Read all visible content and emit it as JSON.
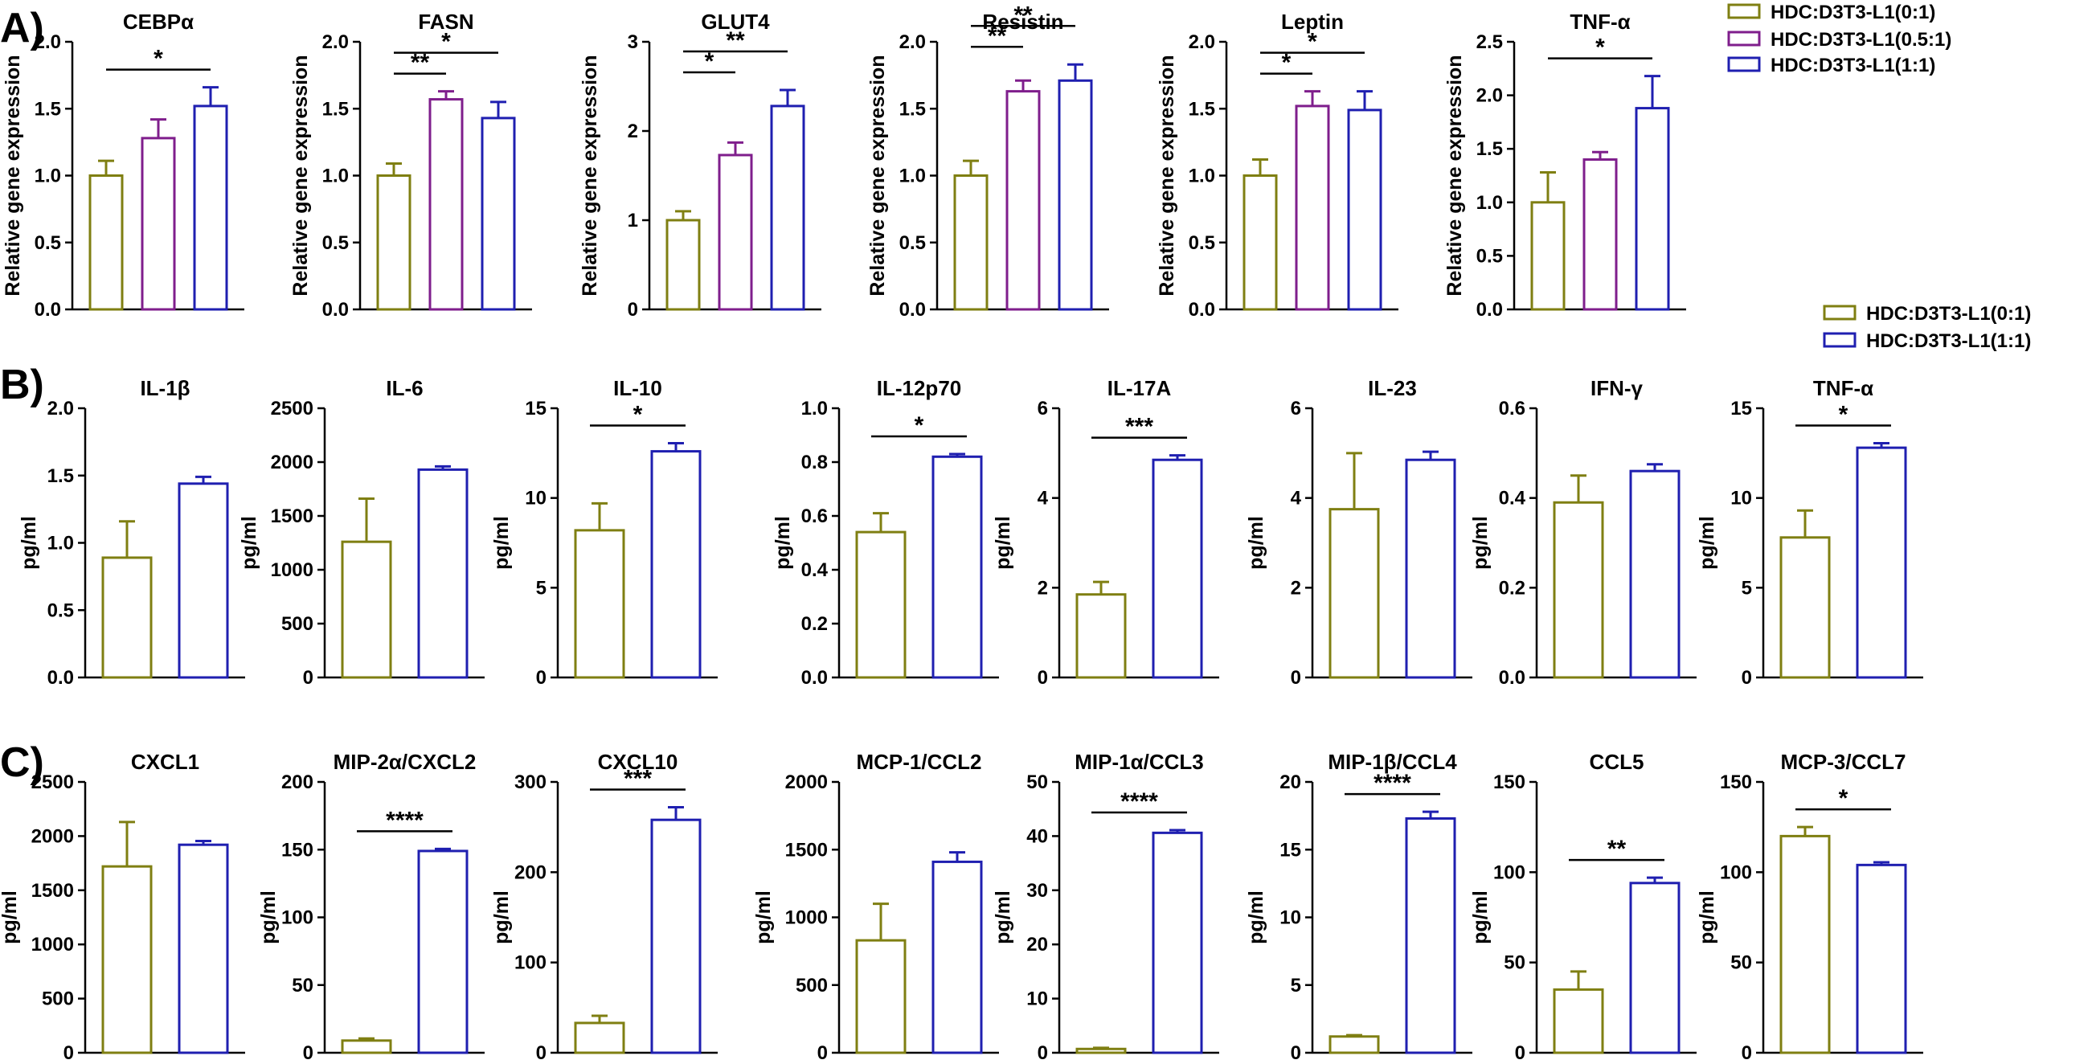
{
  "panels": [
    {
      "label": "A)",
      "ylabel": "Relative gene expression"
    },
    {
      "label": "B)",
      "ylabel": "pg/ml"
    },
    {
      "label": "C)",
      "ylabel": "pg/ml"
    }
  ],
  "groups": [
    {
      "name": "HDC:D3T3-L1(0:1)",
      "color": "#7f7f12"
    },
    {
      "name": "HDC:D3T3-L1(0.5:1)",
      "color": "#7f1e8c"
    },
    {
      "name": "HDC:D3T3-L1(1:1)",
      "color": "#1f1fb0"
    }
  ],
  "legends": [
    {
      "items": [
        "HDC:D3T3-L1(0:1)",
        "HDC:D3T3-L1(0.5:1)",
        "HDC:D3T3-L1(1:1)"
      ],
      "colors": [
        "#7f7f12",
        "#7f1e8c",
        "#1f1fb0"
      ]
    },
    {
      "items": [
        "HDC:D3T3-L1(0:1)",
        "HDC:D3T3-L1(1:1)"
      ],
      "colors": [
        "#7f7f12",
        "#1f1fb0"
      ]
    }
  ],
  "chart_data": [
    {
      "panel": "A",
      "type": "bar",
      "title": "CEBPα",
      "ylabel": "Relative gene expression",
      "ylim": [
        0,
        2.0
      ],
      "yticks": [
        "0.0",
        "0.5",
        "1.0",
        "1.5",
        "2.0"
      ],
      "groups": [
        "HDC:D3T3-L1(0:1)",
        "HDC:D3T3-L1(0.5:1)",
        "HDC:D3T3-L1(1:1)"
      ],
      "values": [
        1.0,
        1.28,
        1.52
      ],
      "errors": [
        0.11,
        0.14,
        0.14
      ],
      "significance": [
        {
          "from": 0,
          "to": 2,
          "label": "*"
        }
      ]
    },
    {
      "panel": "A",
      "type": "bar",
      "title": "FASN",
      "ylabel": "Relative gene expression",
      "ylim": [
        0,
        2.0
      ],
      "yticks": [
        "0.0",
        "0.5",
        "1.0",
        "1.5",
        "2.0"
      ],
      "groups": [
        "HDC:D3T3-L1(0:1)",
        "HDC:D3T3-L1(0.5:1)",
        "HDC:D3T3-L1(1:1)"
      ],
      "values": [
        1.0,
        1.57,
        1.43
      ],
      "errors": [
        0.09,
        0.06,
        0.12
      ],
      "significance": [
        {
          "from": 0,
          "to": 1,
          "label": "**"
        },
        {
          "from": 0,
          "to": 2,
          "label": "*"
        }
      ]
    },
    {
      "panel": "A",
      "type": "bar",
      "title": "GLUT4",
      "ylabel": "Relative gene expression",
      "ylim": [
        0,
        3
      ],
      "yticks": [
        "0",
        "1",
        "2",
        "3"
      ],
      "groups": [
        "HDC:D3T3-L1(0:1)",
        "HDC:D3T3-L1(0.5:1)",
        "HDC:D3T3-L1(1:1)"
      ],
      "values": [
        1.0,
        1.73,
        2.28
      ],
      "errors": [
        0.1,
        0.14,
        0.18
      ],
      "significance": [
        {
          "from": 0,
          "to": 1,
          "label": "*"
        },
        {
          "from": 0,
          "to": 2,
          "label": "**"
        }
      ]
    },
    {
      "panel": "A",
      "type": "bar",
      "title": "Resistin",
      "ylabel": "Relative gene expression",
      "ylim": [
        0,
        2.0
      ],
      "yticks": [
        "0.0",
        "0.5",
        "1.0",
        "1.5",
        "2.0"
      ],
      "groups": [
        "HDC:D3T3-L1(0:1)",
        "HDC:D3T3-L1(0.5:1)",
        "HDC:D3T3-L1(1:1)"
      ],
      "values": [
        1.0,
        1.63,
        1.71
      ],
      "errors": [
        0.11,
        0.08,
        0.12
      ],
      "significance": [
        {
          "from": 0,
          "to": 1,
          "label": "**"
        },
        {
          "from": 0,
          "to": 2,
          "label": "**"
        }
      ]
    },
    {
      "panel": "A",
      "type": "bar",
      "title": "Leptin",
      "ylabel": "Relative gene expression",
      "ylim": [
        0,
        2.0
      ],
      "yticks": [
        "0.0",
        "0.5",
        "1.0",
        "1.5",
        "2.0"
      ],
      "groups": [
        "HDC:D3T3-L1(0:1)",
        "HDC:D3T3-L1(0.5:1)",
        "HDC:D3T3-L1(1:1)"
      ],
      "values": [
        1.0,
        1.52,
        1.49
      ],
      "errors": [
        0.12,
        0.11,
        0.14
      ],
      "significance": [
        {
          "from": 0,
          "to": 1,
          "label": "*"
        },
        {
          "from": 0,
          "to": 2,
          "label": "*"
        }
      ]
    },
    {
      "panel": "A",
      "type": "bar",
      "title": "TNF-α",
      "ylabel": "Relative gene expression",
      "ylim": [
        0,
        2.5
      ],
      "yticks": [
        "0.0",
        "0.5",
        "1.0",
        "1.5",
        "2.0",
        "2.5"
      ],
      "groups": [
        "HDC:D3T3-L1(0:1)",
        "HDC:D3T3-L1(0.5:1)",
        "HDC:D3T3-L1(1:1)"
      ],
      "values": [
        1.0,
        1.4,
        1.88
      ],
      "errors": [
        0.28,
        0.07,
        0.3
      ],
      "significance": [
        {
          "from": 0,
          "to": 2,
          "label": "*"
        }
      ]
    },
    {
      "panel": "B",
      "type": "bar",
      "title": "IL-1β",
      "ylabel": "pg/ml",
      "ylim": [
        0,
        2.0
      ],
      "yticks": [
        "0.0",
        "0.5",
        "1.0",
        "1.5",
        "2.0"
      ],
      "groups": [
        "HDC:D3T3-L1(0:1)",
        "HDC:D3T3-L1(1:1)"
      ],
      "values": [
        0.89,
        1.44
      ],
      "errors": [
        0.27,
        0.05
      ],
      "significance": []
    },
    {
      "panel": "B",
      "type": "bar",
      "title": "IL-6",
      "ylabel": "pg/ml",
      "ylim": [
        0,
        2500
      ],
      "yticks": [
        "0",
        "500",
        "1000",
        "1500",
        "2000",
        "2500"
      ],
      "groups": [
        "HDC:D3T3-L1(0:1)",
        "HDC:D3T3-L1(1:1)"
      ],
      "values": [
        1260,
        1930
      ],
      "errors": [
        400,
        30
      ],
      "significance": []
    },
    {
      "panel": "B",
      "type": "bar",
      "title": "IL-10",
      "ylabel": "pg/ml",
      "ylim": [
        0,
        15
      ],
      "yticks": [
        "0",
        "5",
        "10",
        "15"
      ],
      "groups": [
        "HDC:D3T3-L1(0:1)",
        "HDC:D3T3-L1(1:1)"
      ],
      "values": [
        8.2,
        12.6
      ],
      "errors": [
        1.5,
        0.45
      ],
      "significance": [
        {
          "from": 0,
          "to": 1,
          "label": "*"
        }
      ]
    },
    {
      "panel": "B",
      "type": "bar",
      "title": "IL-12p70",
      "ylabel": "pg/ml",
      "ylim": [
        0,
        1.0
      ],
      "yticks": [
        "0.0",
        "0.2",
        "0.4",
        "0.6",
        "0.8",
        "1.0"
      ],
      "groups": [
        "HDC:D3T3-L1(0:1)",
        "HDC:D3T3-L1(1:1)"
      ],
      "values": [
        0.54,
        0.82
      ],
      "errors": [
        0.07,
        0.01
      ],
      "significance": [
        {
          "from": 0,
          "to": 1,
          "label": "*"
        }
      ]
    },
    {
      "panel": "B",
      "type": "bar",
      "title": "IL-17A",
      "ylabel": "pg/ml",
      "ylim": [
        0,
        6
      ],
      "yticks": [
        "0",
        "2",
        "4",
        "6"
      ],
      "groups": [
        "HDC:D3T3-L1(0:1)",
        "HDC:D3T3-L1(1:1)"
      ],
      "values": [
        1.85,
        4.85
      ],
      "errors": [
        0.28,
        0.1
      ],
      "significance": [
        {
          "from": 0,
          "to": 1,
          "label": "***"
        }
      ]
    },
    {
      "panel": "B",
      "type": "bar",
      "title": "IL-23",
      "ylabel": "pg/ml",
      "ylim": [
        0,
        6
      ],
      "yticks": [
        "0",
        "2",
        "4",
        "6"
      ],
      "groups": [
        "HDC:D3T3-L1(0:1)",
        "HDC:D3T3-L1(1:1)"
      ],
      "values": [
        3.75,
        4.85
      ],
      "errors": [
        1.25,
        0.18
      ],
      "significance": []
    },
    {
      "panel": "B",
      "type": "bar",
      "title": "IFN-γ",
      "ylabel": "pg/ml",
      "ylim": [
        0,
        0.6
      ],
      "yticks": [
        "0.0",
        "0.2",
        "0.4",
        "0.6"
      ],
      "groups": [
        "HDC:D3T3-L1(0:1)",
        "HDC:D3T3-L1(1:1)"
      ],
      "values": [
        0.39,
        0.46
      ],
      "errors": [
        0.06,
        0.015
      ],
      "significance": []
    },
    {
      "panel": "B",
      "type": "bar",
      "title": "TNF-α",
      "ylabel": "pg/ml",
      "ylim": [
        0,
        15
      ],
      "yticks": [
        "0",
        "5",
        "10",
        "15"
      ],
      "groups": [
        "HDC:D3T3-L1(0:1)",
        "HDC:D3T3-L1(1:1)"
      ],
      "values": [
        7.8,
        12.8
      ],
      "errors": [
        1.5,
        0.25
      ],
      "significance": [
        {
          "from": 0,
          "to": 1,
          "label": "*"
        }
      ]
    },
    {
      "panel": "C",
      "type": "bar",
      "title": "CXCL1",
      "ylabel": "pg/ml",
      "ylim": [
        0,
        2500
      ],
      "yticks": [
        "0",
        "500",
        "1000",
        "1500",
        "2000",
        "2500"
      ],
      "groups": [
        "HDC:D3T3-L1(0:1)",
        "HDC:D3T3-L1(1:1)"
      ],
      "values": [
        1720,
        1920
      ],
      "errors": [
        410,
        35
      ],
      "significance": []
    },
    {
      "panel": "C",
      "type": "bar",
      "title": "MIP-2α/CXCL2",
      "ylabel": "pg/ml",
      "ylim": [
        0,
        200
      ],
      "yticks": [
        "0",
        "50",
        "100",
        "150",
        "200"
      ],
      "groups": [
        "HDC:D3T3-L1(0:1)",
        "HDC:D3T3-L1(1:1)"
      ],
      "values": [
        9,
        149
      ],
      "errors": [
        1.5,
        1.5
      ],
      "significance": [
        {
          "from": 0,
          "to": 1,
          "label": "****"
        }
      ]
    },
    {
      "panel": "C",
      "type": "bar",
      "title": "CXCL10",
      "ylabel": "pg/ml",
      "ylim": [
        0,
        300
      ],
      "yticks": [
        "0",
        "100",
        "200",
        "300"
      ],
      "groups": [
        "HDC:D3T3-L1(0:1)",
        "HDC:D3T3-L1(1:1)"
      ],
      "values": [
        33,
        258
      ],
      "errors": [
        8,
        14
      ],
      "significance": [
        {
          "from": 0,
          "to": 1,
          "label": "***"
        }
      ]
    },
    {
      "panel": "C",
      "type": "bar",
      "title": "MCP-1/CCL2",
      "ylabel": "pg/ml",
      "ylim": [
        0,
        2000
      ],
      "yticks": [
        "0",
        "500",
        "1000",
        "1500",
        "2000"
      ],
      "groups": [
        "HDC:D3T3-L1(0:1)",
        "HDC:D3T3-L1(1:1)"
      ],
      "values": [
        830,
        1410
      ],
      "errors": [
        270,
        70
      ],
      "significance": []
    },
    {
      "panel": "C",
      "type": "bar",
      "title": "MIP-1α/CCL3",
      "ylabel": "pg/ml",
      "ylim": [
        0,
        50
      ],
      "yticks": [
        "0",
        "10",
        "20",
        "30",
        "40",
        "50"
      ],
      "groups": [
        "HDC:D3T3-L1(0:1)",
        "HDC:D3T3-L1(1:1)"
      ],
      "values": [
        0.7,
        40.6
      ],
      "errors": [
        0.2,
        0.5
      ],
      "significance": [
        {
          "from": 0,
          "to": 1,
          "label": "****"
        }
      ]
    },
    {
      "panel": "C",
      "type": "bar",
      "title": "MIP-1β/CCL4",
      "ylabel": "pg/ml",
      "ylim": [
        0,
        20
      ],
      "yticks": [
        "0",
        "5",
        "10",
        "15",
        "20"
      ],
      "groups": [
        "HDC:D3T3-L1(0:1)",
        "HDC:D3T3-L1(1:1)"
      ],
      "values": [
        1.2,
        17.3
      ],
      "errors": [
        0.1,
        0.5
      ],
      "significance": [
        {
          "from": 0,
          "to": 1,
          "label": "****"
        }
      ]
    },
    {
      "panel": "C",
      "type": "bar",
      "title": "CCL5",
      "ylabel": "pg/ml",
      "ylim": [
        0,
        150
      ],
      "yticks": [
        "0",
        "50",
        "100",
        "150"
      ],
      "groups": [
        "HDC:D3T3-L1(0:1)",
        "HDC:D3T3-L1(1:1)"
      ],
      "values": [
        35,
        94
      ],
      "errors": [
        10,
        3
      ],
      "significance": [
        {
          "from": 0,
          "to": 1,
          "label": "**"
        }
      ]
    },
    {
      "panel": "C",
      "type": "bar",
      "title": "MCP-3/CCL7",
      "ylabel": "pg/ml",
      "ylim": [
        0,
        150
      ],
      "yticks": [
        "0",
        "50",
        "100",
        "150"
      ],
      "groups": [
        "HDC:D3T3-L1(0:1)",
        "HDC:D3T3-L1(1:1)"
      ],
      "values": [
        120,
        104
      ],
      "errors": [
        5,
        1.5
      ],
      "significance": [
        {
          "from": 0,
          "to": 1,
          "label": "*"
        }
      ]
    }
  ]
}
